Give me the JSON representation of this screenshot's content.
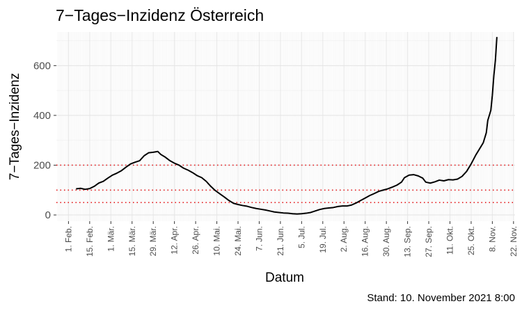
{
  "chart_data": {
    "type": "line",
    "title": "7−Tages−Inzidenz Österreich",
    "xlabel": "Datum",
    "ylabel": "7−Tages−Inzidenz",
    "caption": "Stand: 10. November 2021 8:00",
    "ylim": [
      -25,
      735
    ],
    "y_ticks": [
      0,
      200,
      400,
      600
    ],
    "x_range": [
      "2021-01-24",
      "2021-11-23"
    ],
    "x_ticks": [
      {
        "date": "2021-02-01",
        "label": "1. Feb."
      },
      {
        "date": "2021-02-15",
        "label": "15. Feb."
      },
      {
        "date": "2021-03-01",
        "label": "1. Mär."
      },
      {
        "date": "2021-03-15",
        "label": "15. Mär."
      },
      {
        "date": "2021-03-29",
        "label": "29. Mär."
      },
      {
        "date": "2021-04-12",
        "label": "12. Apr."
      },
      {
        "date": "2021-04-26",
        "label": "26. Apr."
      },
      {
        "date": "2021-05-10",
        "label": "10. Mai."
      },
      {
        "date": "2021-05-24",
        "label": "24. Mai."
      },
      {
        "date": "2021-06-07",
        "label": "7. Jun."
      },
      {
        "date": "2021-06-21",
        "label": "21. Jun."
      },
      {
        "date": "2021-07-05",
        "label": "5. Jul."
      },
      {
        "date": "2021-07-19",
        "label": "19. Jul."
      },
      {
        "date": "2021-08-02",
        "label": "2. Aug."
      },
      {
        "date": "2021-08-16",
        "label": "16. Aug."
      },
      {
        "date": "2021-08-30",
        "label": "30. Aug."
      },
      {
        "date": "2021-09-13",
        "label": "13. Sep."
      },
      {
        "date": "2021-09-27",
        "label": "27. Sep."
      },
      {
        "date": "2021-10-11",
        "label": "11. Okt."
      },
      {
        "date": "2021-10-25",
        "label": "25. Okt."
      },
      {
        "date": "2021-11-08",
        "label": "8. Nov."
      },
      {
        "date": "2021-11-22",
        "label": "22. Nov."
      }
    ],
    "reference_lines": [
      {
        "y": 200,
        "color": "#e41a1c"
      },
      {
        "y": 100,
        "color": "#e41a1c"
      },
      {
        "y": 50,
        "color": "#e41a1c"
      }
    ],
    "grid": true,
    "series": [
      {
        "color": "#000000",
        "points": [
          [
            "2021-02-06",
            105
          ],
          [
            "2021-02-09",
            107
          ],
          [
            "2021-02-12",
            103
          ],
          [
            "2021-02-15",
            106
          ],
          [
            "2021-02-18",
            115
          ],
          [
            "2021-02-21",
            128
          ],
          [
            "2021-02-24",
            135
          ],
          [
            "2021-02-27",
            148
          ],
          [
            "2021-03-02",
            160
          ],
          [
            "2021-03-05",
            168
          ],
          [
            "2021-03-08",
            178
          ],
          [
            "2021-03-11",
            192
          ],
          [
            "2021-03-14",
            205
          ],
          [
            "2021-03-17",
            212
          ],
          [
            "2021-03-20",
            218
          ],
          [
            "2021-03-23",
            238
          ],
          [
            "2021-03-26",
            250
          ],
          [
            "2021-03-29",
            252
          ],
          [
            "2021-04-01",
            255
          ],
          [
            "2021-04-03",
            243
          ],
          [
            "2021-04-06",
            232
          ],
          [
            "2021-04-09",
            218
          ],
          [
            "2021-04-12",
            208
          ],
          [
            "2021-04-15",
            200
          ],
          [
            "2021-04-18",
            188
          ],
          [
            "2021-04-21",
            180
          ],
          [
            "2021-04-24",
            170
          ],
          [
            "2021-04-27",
            158
          ],
          [
            "2021-04-30",
            150
          ],
          [
            "2021-05-03",
            135
          ],
          [
            "2021-05-06",
            115
          ],
          [
            "2021-05-09",
            98
          ],
          [
            "2021-05-12",
            85
          ],
          [
            "2021-05-15",
            72
          ],
          [
            "2021-05-18",
            58
          ],
          [
            "2021-05-21",
            47
          ],
          [
            "2021-05-24",
            42
          ],
          [
            "2021-05-27",
            38
          ],
          [
            "2021-05-30",
            35
          ],
          [
            "2021-06-02",
            30
          ],
          [
            "2021-06-05",
            26
          ],
          [
            "2021-06-08",
            23
          ],
          [
            "2021-06-11",
            20
          ],
          [
            "2021-06-14",
            16
          ],
          [
            "2021-06-17",
            12
          ],
          [
            "2021-06-20",
            10
          ],
          [
            "2021-06-23",
            8
          ],
          [
            "2021-06-26",
            7
          ],
          [
            "2021-06-29",
            5
          ],
          [
            "2021-07-02",
            4
          ],
          [
            "2021-07-05",
            5
          ],
          [
            "2021-07-08",
            7
          ],
          [
            "2021-07-11",
            10
          ],
          [
            "2021-07-14",
            16
          ],
          [
            "2021-07-17",
            22
          ],
          [
            "2021-07-20",
            26
          ],
          [
            "2021-07-23",
            28
          ],
          [
            "2021-07-26",
            30
          ],
          [
            "2021-07-29",
            34
          ],
          [
            "2021-08-01",
            36
          ],
          [
            "2021-08-04",
            36
          ],
          [
            "2021-08-07",
            40
          ],
          [
            "2021-08-10",
            48
          ],
          [
            "2021-08-13",
            58
          ],
          [
            "2021-08-16",
            68
          ],
          [
            "2021-08-19",
            78
          ],
          [
            "2021-08-22",
            86
          ],
          [
            "2021-08-25",
            95
          ],
          [
            "2021-08-28",
            100
          ],
          [
            "2021-08-31",
            105
          ],
          [
            "2021-09-03",
            112
          ],
          [
            "2021-09-06",
            120
          ],
          [
            "2021-09-09",
            132
          ],
          [
            "2021-09-11",
            150
          ],
          [
            "2021-09-14",
            160
          ],
          [
            "2021-09-17",
            162
          ],
          [
            "2021-09-20",
            157
          ],
          [
            "2021-09-23",
            148
          ],
          [
            "2021-09-25",
            132
          ],
          [
            "2021-09-28",
            128
          ],
          [
            "2021-10-01",
            133
          ],
          [
            "2021-10-04",
            140
          ],
          [
            "2021-10-07",
            137
          ],
          [
            "2021-10-10",
            142
          ],
          [
            "2021-10-13",
            141
          ],
          [
            "2021-10-16",
            144
          ],
          [
            "2021-10-19",
            155
          ],
          [
            "2021-10-22",
            175
          ],
          [
            "2021-10-25",
            205
          ],
          [
            "2021-10-28",
            240
          ],
          [
            "2021-10-31",
            270
          ],
          [
            "2021-11-02",
            290
          ],
          [
            "2021-11-04",
            330
          ],
          [
            "2021-11-05",
            380
          ],
          [
            "2021-11-07",
            420
          ],
          [
            "2021-11-08",
            480
          ],
          [
            "2021-11-09",
            560
          ],
          [
            "2021-11-10",
            620
          ],
          [
            "2021-11-11",
            715
          ]
        ]
      }
    ]
  }
}
